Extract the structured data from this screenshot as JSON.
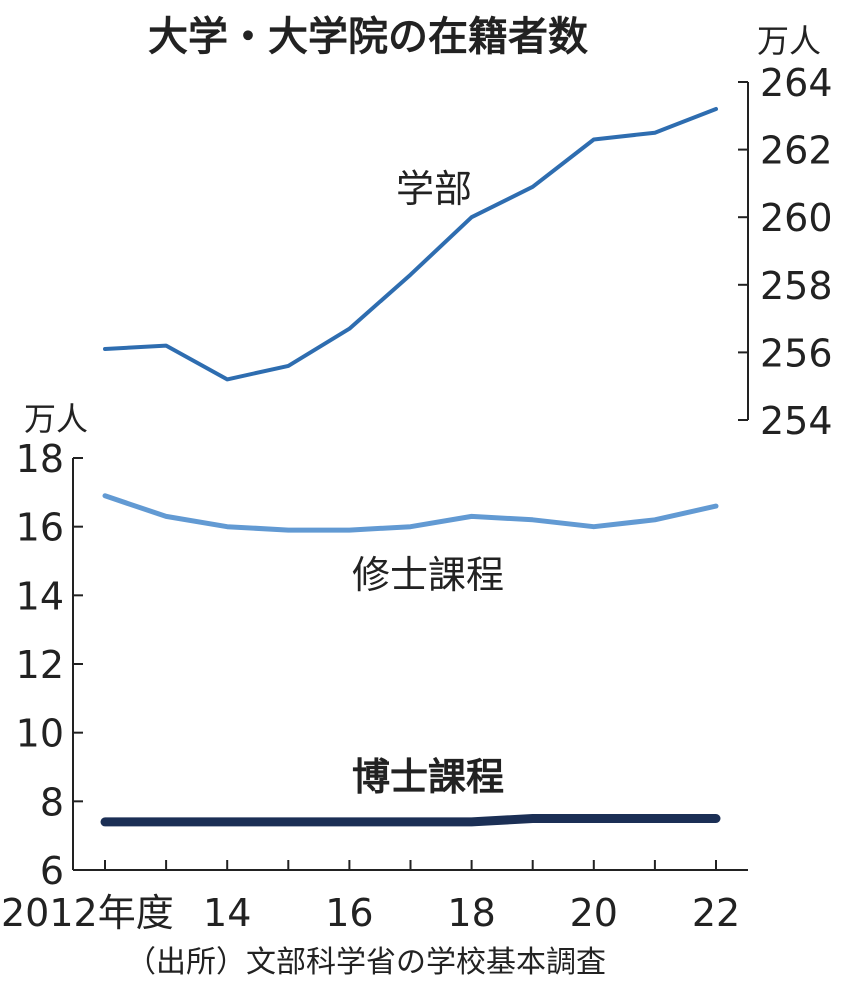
{
  "chart_data": {
    "type": "line",
    "title": "大学・大学院の在籍者数",
    "source": "（出所）文部科学省の学校基本調査",
    "x": [
      2012,
      2013,
      2014,
      2015,
      2016,
      2017,
      2018,
      2019,
      2020,
      2021,
      2022
    ],
    "x_tick_labels": [
      "2012年度",
      "14",
      "16",
      "18",
      "20",
      "22"
    ],
    "x_tick_values": [
      2012,
      2014,
      2016,
      2018,
      2020,
      2022
    ],
    "upper_axis": {
      "unit": "万人",
      "ylim": [
        254,
        264
      ],
      "ticks": [
        "264",
        "262",
        "260",
        "258",
        "256",
        "254"
      ],
      "tick_values": [
        264,
        262,
        260,
        258,
        256,
        254
      ]
    },
    "lower_axis": {
      "unit": "万人",
      "ylim": [
        6,
        18
      ],
      "ticks": [
        "18",
        "16",
        "14",
        "12",
        "10",
        "8",
        "6"
      ],
      "tick_values": [
        18,
        16,
        14,
        12,
        10,
        8,
        6
      ]
    },
    "series": [
      {
        "name": "学部",
        "axis": "upper",
        "color": "#2e6db0",
        "values": [
          256.1,
          256.2,
          255.2,
          255.6,
          256.7,
          258.3,
          260.0,
          260.9,
          262.3,
          262.5,
          263.2
        ]
      },
      {
        "name": "修士課程",
        "axis": "lower",
        "color": "#629ad3",
        "values": [
          16.9,
          16.3,
          16.0,
          15.9,
          15.9,
          16.0,
          16.3,
          16.2,
          16.0,
          16.2,
          16.6
        ]
      },
      {
        "name": "博士課程",
        "axis": "lower",
        "color": "#1b2f55",
        "values": [
          7.4,
          7.4,
          7.4,
          7.4,
          7.4,
          7.4,
          7.4,
          7.5,
          7.5,
          7.5,
          7.5
        ]
      }
    ]
  }
}
